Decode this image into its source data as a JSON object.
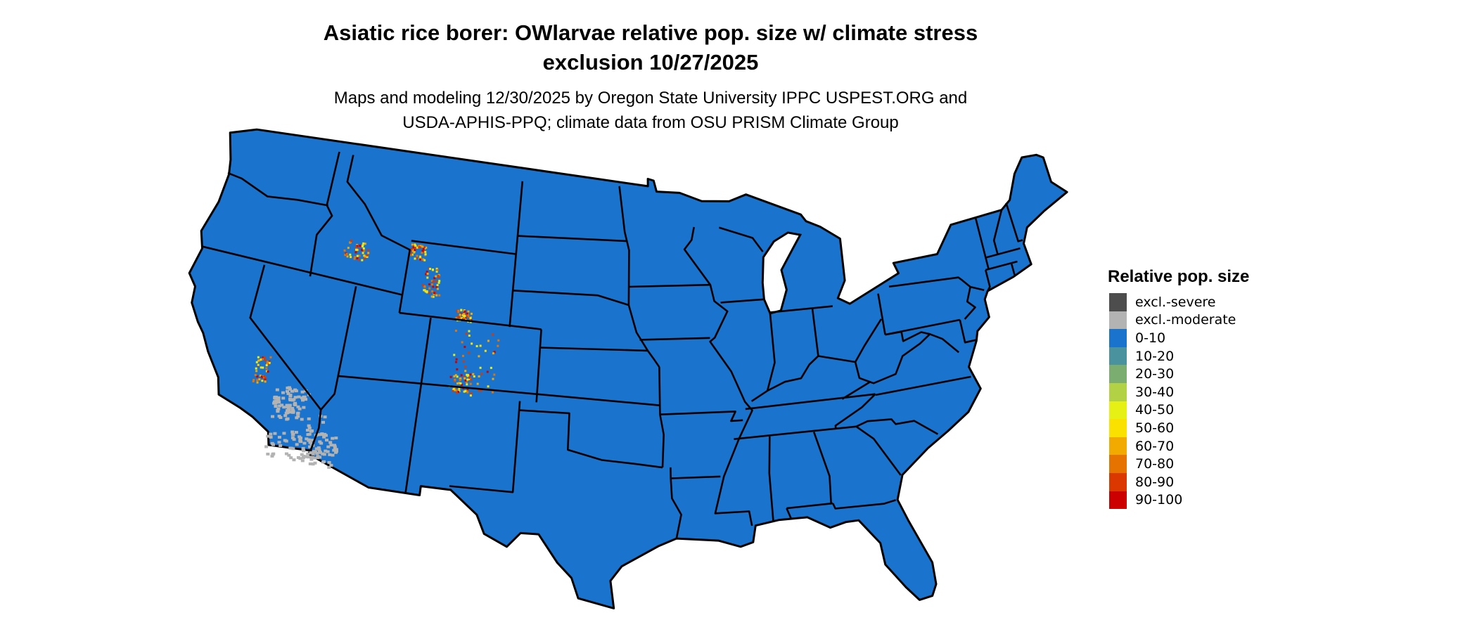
{
  "title": {
    "line1": "Asiatic rice borer: OWlarvae relative pop. size w/ climate stress",
    "line2": "exclusion 10/27/2025"
  },
  "subtitle": {
    "line1": "Maps and modeling 12/30/2025 by Oregon State University IPPC USPEST.ORG and",
    "line2": "USDA-APHIS-PPQ; climate data from OSU PRISM Climate Group"
  },
  "map": {
    "region": "Contiguous United States",
    "base_fill": "#1a73cc",
    "border_color": "#000000",
    "dominant_class": "0-10"
  },
  "legend": {
    "title": "Relative pop. size",
    "items": [
      {
        "label": "excl.-severe",
        "color": "#4d4d4d"
      },
      {
        "label": "excl.-moderate",
        "color": "#b3b3b3"
      },
      {
        "label": "0-10",
        "color": "#1a73cc"
      },
      {
        "label": "10-20",
        "color": "#4a929e"
      },
      {
        "label": "20-30",
        "color": "#7bad70"
      },
      {
        "label": "30-40",
        "color": "#b3d145"
      },
      {
        "label": "40-50",
        "color": "#e6f015"
      },
      {
        "label": "50-60",
        "color": "#fae100"
      },
      {
        "label": "60-70",
        "color": "#f2a900"
      },
      {
        "label": "70-80",
        "color": "#e67300"
      },
      {
        "label": "80-90",
        "color": "#db3800"
      },
      {
        "label": "90-100",
        "color": "#cc0000"
      }
    ]
  }
}
